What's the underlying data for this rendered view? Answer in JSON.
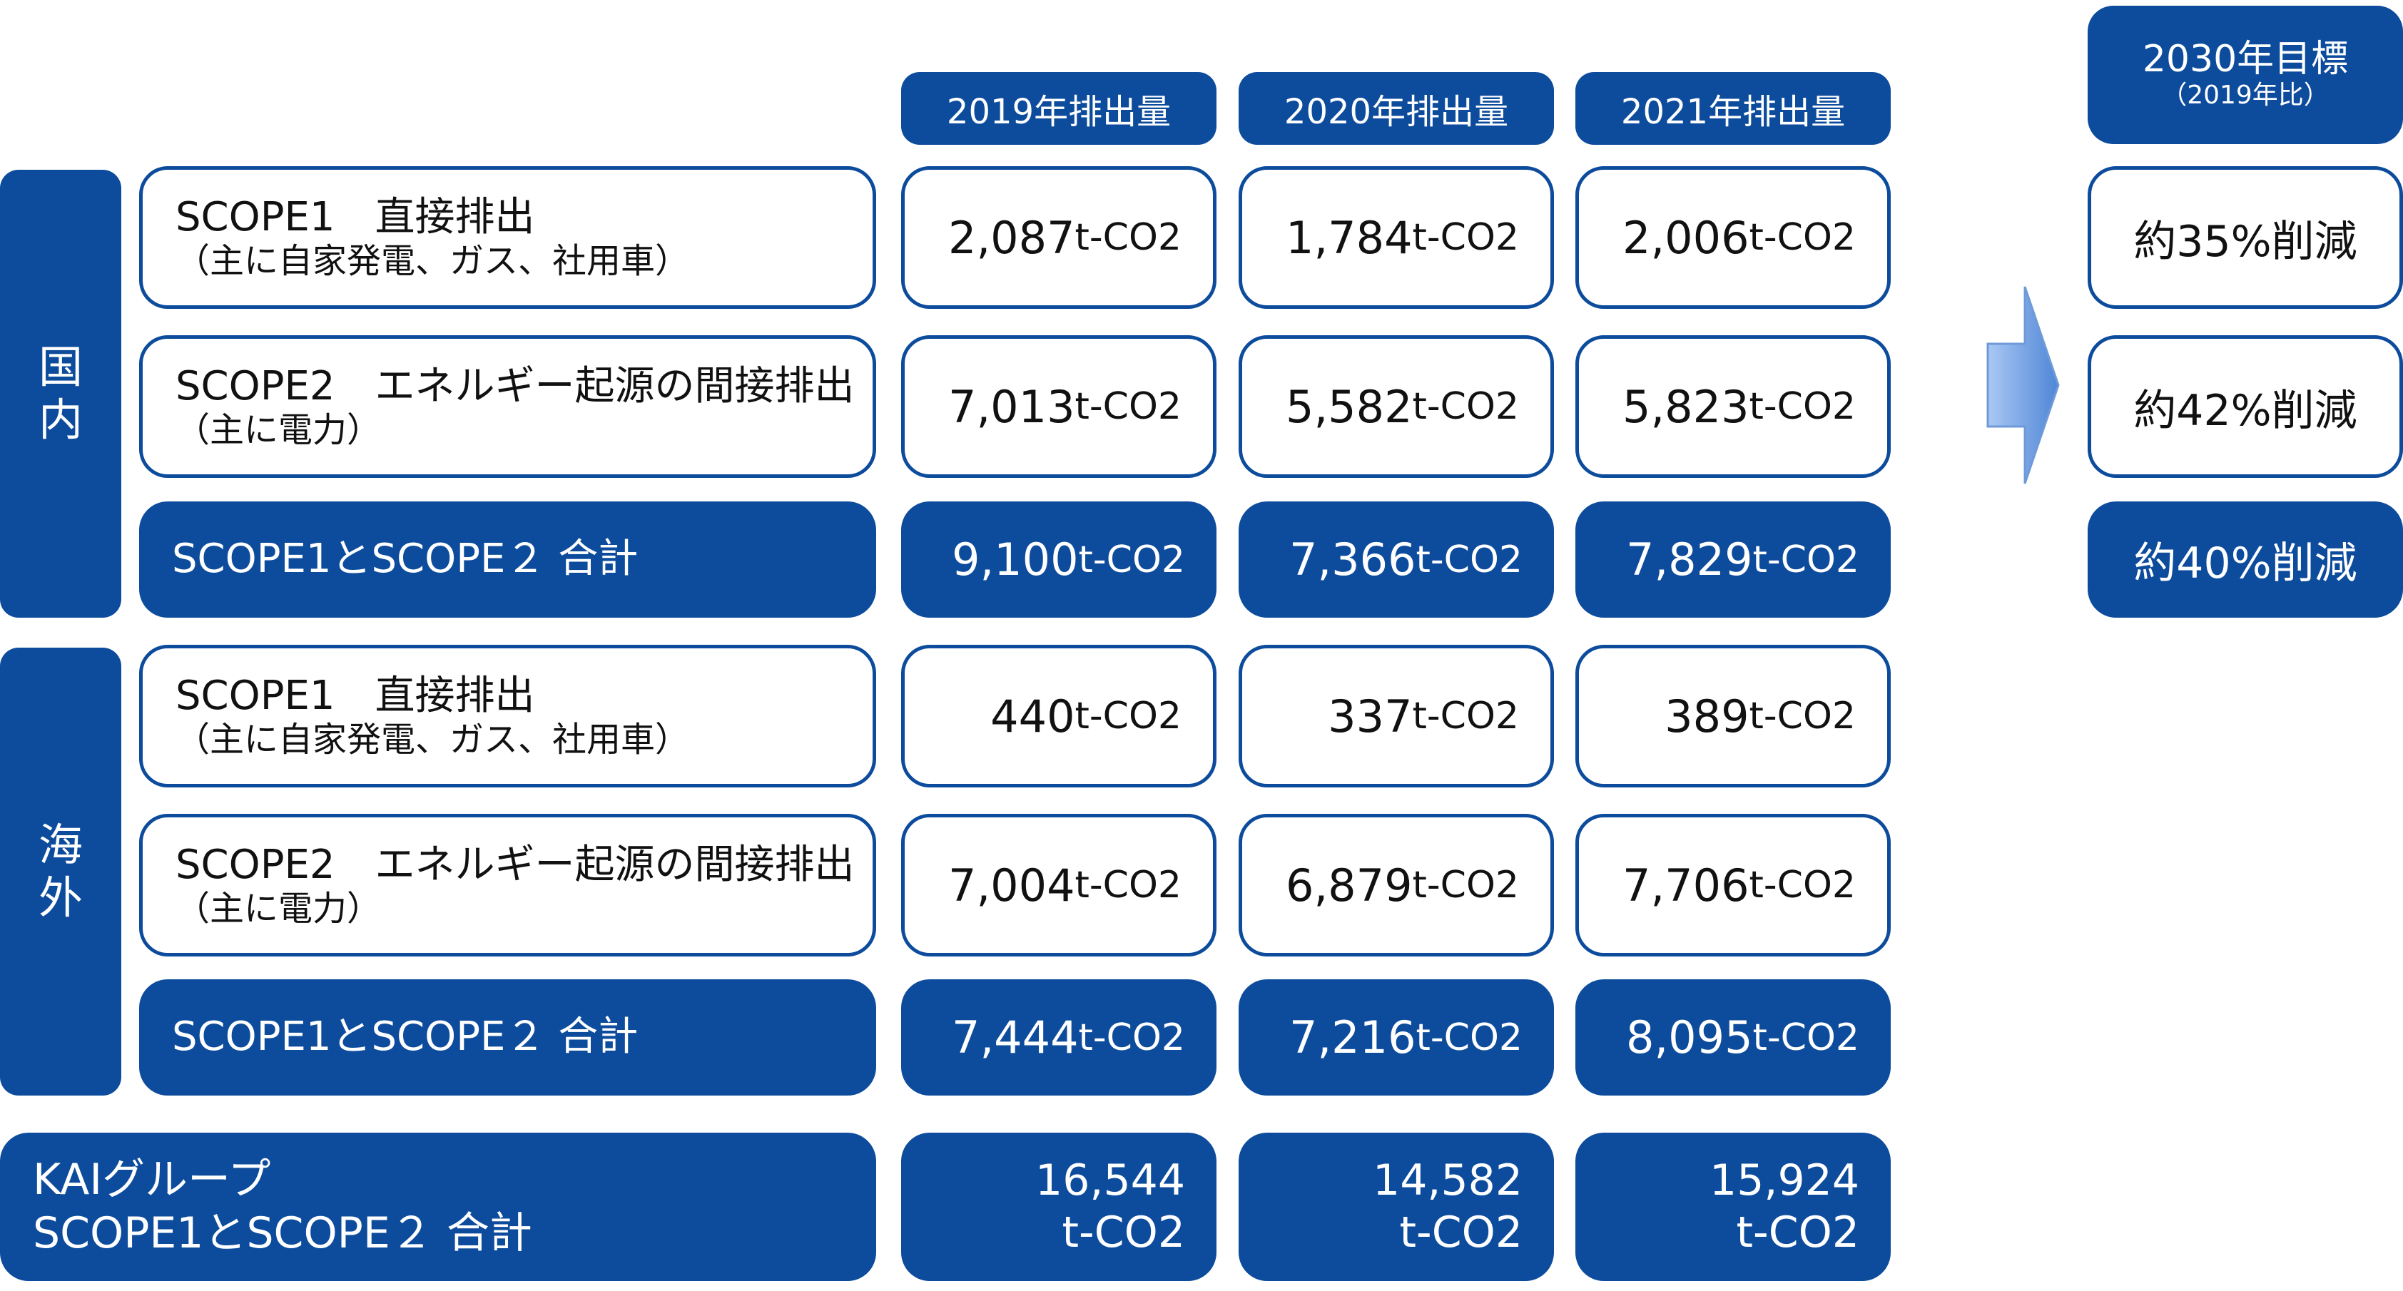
{
  "headers": {
    "y2019": "2019年排出量",
    "y2020": "2020年排出量",
    "y2021": "2021年排出量",
    "target_title": "2030年目標",
    "target_sub": "（2019年比）"
  },
  "domestic": {
    "label": "国\n内",
    "scope1": {
      "title": "SCOPE1　直接排出",
      "sub": "（主に自家発電、ガス、社用車）"
    },
    "scope2": {
      "title": "SCOPE2　エネルギー起源の間接排出",
      "sub": "（主に電力）"
    },
    "total_label": "SCOPE1とSCOPE２ 合計",
    "values": {
      "scope1": [
        "2,087",
        "1,784",
        "2,006"
      ],
      "scope2": [
        "7,013",
        "5,582",
        "5,823"
      ],
      "total": [
        "9,100",
        "7,366",
        "7,829"
      ]
    }
  },
  "overseas": {
    "label": "海\n外",
    "scope1": {
      "title": "SCOPE1　直接排出",
      "sub": "（主に自家発電、ガス、社用車）"
    },
    "scope2": {
      "title": "SCOPE2　エネルギー起源の間接排出",
      "sub": "（主に電力）"
    },
    "total_label": "SCOPE1とSCOPE２ 合計",
    "values": {
      "scope1": [
        "440",
        "337",
        "389"
      ],
      "scope2": [
        "7,004",
        "6,879",
        "7,706"
      ],
      "total": [
        "7,444",
        "7,216",
        "8,095"
      ]
    }
  },
  "unit": "t-CO2",
  "group_total": {
    "line1": "KAIグループ",
    "line2": "SCOPE1とSCOPE２ 合計",
    "values": [
      "16,544",
      "14,582",
      "15,924"
    ]
  },
  "targets": {
    "scope1": "約35%削減",
    "scope2": "約42%削減",
    "total": "約40%削減"
  },
  "colors": {
    "navy": "#0d4c9c",
    "arrow_light": "#aac8f4",
    "arrow_dark": "#4f86d6"
  },
  "icons": {
    "arrow": "arrow-right-icon"
  }
}
